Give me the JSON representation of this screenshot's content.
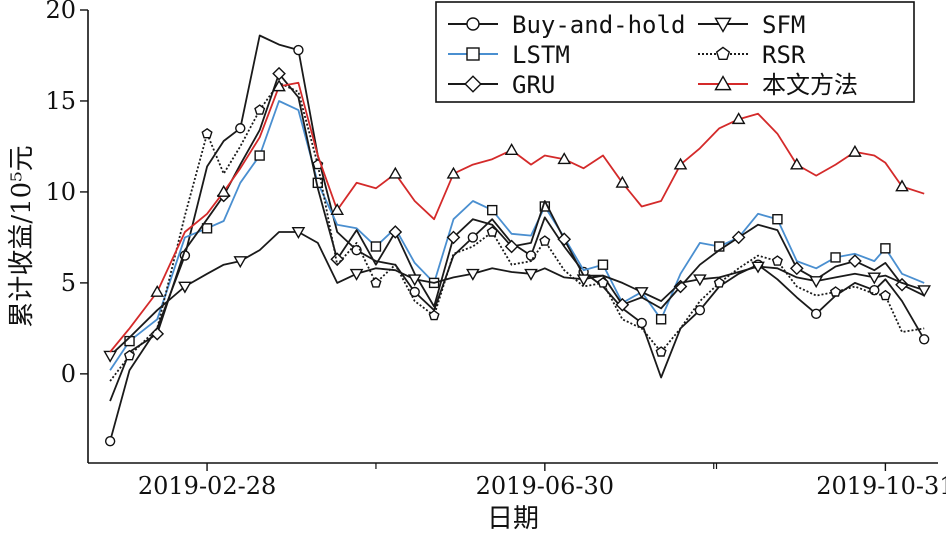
{
  "chart_data": {
    "type": "line",
    "xlabel": "日期",
    "ylabel": "累计收益/10⁵元",
    "x_range": [
      "2019-01-16",
      "2019-11-19"
    ],
    "ylim": [
      -4.9,
      20
    ],
    "x_ticks": [
      "2019-02-28",
      "2019-06-30",
      "2019-10-31"
    ],
    "y_ticks": [
      0,
      5,
      10,
      15,
      20
    ],
    "grid": false,
    "legend_position": "top-right",
    "legend_columns": 2,
    "series": [
      {
        "name": "Buy-and-hold",
        "color": "#1a1a1a",
        "dash": "",
        "marker": "circle",
        "x": [
          "2019-01-24",
          "2019-01-31",
          "2019-02-10",
          "2019-02-20",
          "2019-02-28",
          "2019-03-06",
          "2019-03-12",
          "2019-03-19",
          "2019-03-26",
          "2019-04-02",
          "2019-04-09",
          "2019-04-16",
          "2019-04-23",
          "2019-04-30",
          "2019-05-07",
          "2019-05-14",
          "2019-05-21",
          "2019-05-28",
          "2019-06-04",
          "2019-06-11",
          "2019-06-18",
          "2019-06-25",
          "2019-06-30",
          "2019-07-07",
          "2019-07-14",
          "2019-07-21",
          "2019-07-28",
          "2019-08-04",
          "2019-08-11",
          "2019-08-18",
          "2019-08-25",
          "2019-09-01",
          "2019-09-08",
          "2019-09-15",
          "2019-09-22",
          "2019-09-29",
          "2019-10-06",
          "2019-10-13",
          "2019-10-20",
          "2019-10-27",
          "2019-10-31",
          "2019-11-06",
          "2019-11-14"
        ],
        "values": [
          -3.7,
          0.2,
          2.5,
          6.5,
          11.4,
          12.8,
          13.5,
          18.6,
          18.1,
          17.8,
          12.0,
          7.8,
          6.8,
          6.2,
          6.0,
          4.5,
          3.5,
          6.5,
          7.5,
          8.5,
          7.2,
          6.5,
          8.6,
          7.0,
          5.6,
          4.8,
          3.6,
          2.8,
          -0.2,
          2.5,
          3.5,
          4.8,
          5.5,
          6.0,
          5.2,
          4.2,
          3.3,
          4.3,
          5.0,
          4.6,
          5.2,
          4.0,
          1.9
        ]
      },
      {
        "name": "LSTM",
        "color": "#4a8fd0",
        "dash": "",
        "marker": "square",
        "x": [
          "2019-01-24",
          "2019-01-31",
          "2019-02-10",
          "2019-02-20",
          "2019-02-28",
          "2019-03-06",
          "2019-03-12",
          "2019-03-19",
          "2019-03-26",
          "2019-04-02",
          "2019-04-09",
          "2019-04-16",
          "2019-04-23",
          "2019-04-30",
          "2019-05-07",
          "2019-05-14",
          "2019-05-21",
          "2019-05-28",
          "2019-06-04",
          "2019-06-11",
          "2019-06-18",
          "2019-06-25",
          "2019-06-30",
          "2019-07-07",
          "2019-07-14",
          "2019-07-21",
          "2019-07-28",
          "2019-08-04",
          "2019-08-11",
          "2019-08-18",
          "2019-08-25",
          "2019-09-01",
          "2019-09-08",
          "2019-09-15",
          "2019-09-22",
          "2019-09-29",
          "2019-10-06",
          "2019-10-13",
          "2019-10-20",
          "2019-10-27",
          "2019-10-31",
          "2019-11-06",
          "2019-11-14"
        ],
        "values": [
          0.2,
          1.8,
          3.0,
          7.5,
          8.0,
          8.4,
          10.5,
          12.0,
          15.0,
          14.5,
          10.5,
          8.2,
          8.0,
          7.0,
          8.0,
          6.1,
          5.0,
          8.5,
          9.5,
          9.0,
          7.7,
          7.6,
          9.2,
          7.5,
          5.7,
          6.0,
          3.9,
          4.5,
          3.0,
          5.5,
          7.2,
          7.0,
          7.5,
          8.8,
          8.5,
          6.2,
          5.8,
          6.4,
          6.6,
          6.2,
          6.9,
          5.5,
          5.0
        ]
      },
      {
        "name": "GRU",
        "color": "#1a1a1a",
        "dash": "",
        "marker": "diamond",
        "x": [
          "2019-01-24",
          "2019-01-31",
          "2019-02-10",
          "2019-02-20",
          "2019-02-28",
          "2019-03-06",
          "2019-03-12",
          "2019-03-19",
          "2019-03-26",
          "2019-04-02",
          "2019-04-09",
          "2019-04-16",
          "2019-04-23",
          "2019-04-30",
          "2019-05-07",
          "2019-05-14",
          "2019-05-21",
          "2019-05-28",
          "2019-06-04",
          "2019-06-11",
          "2019-06-18",
          "2019-06-25",
          "2019-06-30",
          "2019-07-07",
          "2019-07-14",
          "2019-07-21",
          "2019-07-28",
          "2019-08-04",
          "2019-08-11",
          "2019-08-18",
          "2019-08-25",
          "2019-09-01",
          "2019-09-08",
          "2019-09-15",
          "2019-09-22",
          "2019-09-29",
          "2019-10-06",
          "2019-10-13",
          "2019-10-20",
          "2019-10-27",
          "2019-10-31",
          "2019-11-06",
          "2019-11-14"
        ],
        "values": [
          -1.5,
          1.2,
          2.2,
          6.8,
          8.5,
          9.8,
          11.5,
          13.4,
          16.5,
          15.2,
          10.2,
          6.3,
          7.9,
          6.0,
          7.8,
          5.5,
          3.7,
          7.5,
          8.5,
          8.2,
          7.0,
          7.2,
          9.5,
          7.4,
          5.4,
          5.4,
          3.8,
          4.2,
          3.6,
          4.8,
          6.0,
          6.8,
          7.5,
          8.2,
          7.9,
          5.8,
          5.2,
          5.9,
          6.2,
          5.7,
          6.1,
          4.9,
          4.3
        ]
      },
      {
        "name": "SFM",
        "color": "#1a1a1a",
        "dash": "",
        "marker": "triangle-down",
        "x": [
          "2019-01-24",
          "2019-01-31",
          "2019-02-10",
          "2019-02-20",
          "2019-02-28",
          "2019-03-06",
          "2019-03-12",
          "2019-03-19",
          "2019-03-26",
          "2019-04-02",
          "2019-04-09",
          "2019-04-16",
          "2019-04-23",
          "2019-04-30",
          "2019-05-07",
          "2019-05-14",
          "2019-05-21",
          "2019-05-28",
          "2019-06-04",
          "2019-06-11",
          "2019-06-18",
          "2019-06-25",
          "2019-06-30",
          "2019-07-07",
          "2019-07-14",
          "2019-07-21",
          "2019-07-28",
          "2019-08-04",
          "2019-08-11",
          "2019-08-18",
          "2019-08-25",
          "2019-09-01",
          "2019-09-08",
          "2019-09-15",
          "2019-09-22",
          "2019-09-29",
          "2019-10-06",
          "2019-10-13",
          "2019-10-20",
          "2019-10-27",
          "2019-10-31",
          "2019-11-06",
          "2019-11-14"
        ],
        "values": [
          1.0,
          2.0,
          3.5,
          4.8,
          5.5,
          6.0,
          6.2,
          6.8,
          7.8,
          7.8,
          7.2,
          5.0,
          5.5,
          5.8,
          5.7,
          5.2,
          5.0,
          5.3,
          5.5,
          5.8,
          5.6,
          5.5,
          5.8,
          5.3,
          5.2,
          5.4,
          5.0,
          4.5,
          4.0,
          5.0,
          5.2,
          5.3,
          5.6,
          5.9,
          5.8,
          5.3,
          5.1,
          5.3,
          5.5,
          5.3,
          5.4,
          5.0,
          4.6
        ]
      },
      {
        "name": "RSR",
        "color": "#1a1a1a",
        "dash": "2 2",
        "marker": "pentagon",
        "x": [
          "2019-01-24",
          "2019-01-31",
          "2019-02-10",
          "2019-02-20",
          "2019-02-28",
          "2019-03-06",
          "2019-03-12",
          "2019-03-19",
          "2019-03-26",
          "2019-04-02",
          "2019-04-09",
          "2019-04-16",
          "2019-04-23",
          "2019-04-30",
          "2019-05-07",
          "2019-05-14",
          "2019-05-21",
          "2019-05-28",
          "2019-06-04",
          "2019-06-11",
          "2019-06-18",
          "2019-06-25",
          "2019-06-30",
          "2019-07-07",
          "2019-07-14",
          "2019-07-21",
          "2019-07-28",
          "2019-08-04",
          "2019-08-11",
          "2019-08-18",
          "2019-08-25",
          "2019-09-01",
          "2019-09-08",
          "2019-09-15",
          "2019-09-22",
          "2019-09-29",
          "2019-10-06",
          "2019-10-13",
          "2019-10-20",
          "2019-10-27",
          "2019-10-31",
          "2019-11-06",
          "2019-11-14"
        ],
        "values": [
          -0.4,
          1.0,
          2.5,
          8.7,
          13.2,
          11.0,
          12.5,
          14.5,
          16.0,
          15.5,
          11.5,
          6.0,
          7.2,
          5.0,
          6.0,
          4.0,
          3.2,
          6.6,
          7.0,
          7.8,
          6.0,
          6.2,
          7.3,
          5.7,
          4.8,
          5.0,
          3.0,
          2.5,
          1.2,
          2.5,
          4.0,
          5.0,
          5.8,
          6.5,
          6.2,
          4.8,
          4.3,
          4.5,
          4.8,
          4.4,
          4.3,
          2.3,
          2.5
        ]
      },
      {
        "name": "本文方法",
        "color": "#d42a2a",
        "dash": "",
        "marker": "triangle-up",
        "x": [
          "2019-01-24",
          "2019-01-31",
          "2019-02-10",
          "2019-02-20",
          "2019-02-28",
          "2019-03-06",
          "2019-03-12",
          "2019-03-19",
          "2019-03-26",
          "2019-04-02",
          "2019-04-09",
          "2019-04-16",
          "2019-04-23",
          "2019-04-30",
          "2019-05-07",
          "2019-05-14",
          "2019-05-21",
          "2019-05-28",
          "2019-06-04",
          "2019-06-11",
          "2019-06-18",
          "2019-06-25",
          "2019-06-30",
          "2019-07-07",
          "2019-07-14",
          "2019-07-21",
          "2019-07-28",
          "2019-08-04",
          "2019-08-11",
          "2019-08-18",
          "2019-08-25",
          "2019-09-01",
          "2019-09-08",
          "2019-09-15",
          "2019-09-22",
          "2019-09-29",
          "2019-10-06",
          "2019-10-13",
          "2019-10-20",
          "2019-10-27",
          "2019-10-31",
          "2019-11-06",
          "2019-11-14"
        ],
        "values": [
          1.2,
          2.5,
          4.5,
          7.8,
          8.8,
          10.0,
          11.3,
          13.0,
          15.8,
          16.0,
          12.0,
          9.0,
          10.5,
          10.2,
          11.0,
          9.5,
          8.5,
          11.0,
          11.5,
          11.8,
          12.3,
          11.5,
          12.0,
          11.8,
          11.3,
          12.0,
          10.5,
          9.2,
          9.5,
          11.5,
          12.4,
          13.5,
          14.0,
          14.3,
          13.2,
          11.5,
          10.9,
          11.5,
          12.2,
          12.0,
          11.6,
          10.3,
          9.9
        ]
      }
    ]
  }
}
